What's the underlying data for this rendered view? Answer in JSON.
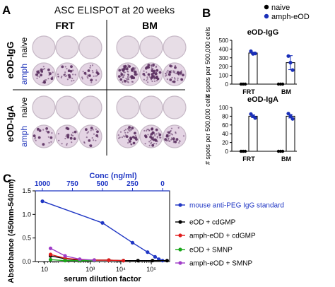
{
  "panel_labels": {
    "a": "A",
    "b": "B",
    "c": "C"
  },
  "panel_a": {
    "title": "ASC ELISPOT at 20 weeks",
    "columns": [
      "FRT",
      "BM"
    ],
    "row_groups": [
      {
        "label": "eOD-IgG",
        "rows": [
          "naive",
          "amph"
        ]
      },
      {
        "label": "eOD-IgA",
        "rows": [
          "naive",
          "amph"
        ]
      }
    ],
    "colors": {
      "naive_label": "#000000",
      "amph_label": "#1a2fb8",
      "well_bg": "#e7dde6",
      "well_rim": "#c6b8c6",
      "spot": "#5a2f5f"
    },
    "spot_density": {
      "igg_naive_frt": [
        0,
        0,
        0
      ],
      "igg_amph_frt": [
        30,
        28,
        26
      ],
      "igg_naive_bm": [
        0,
        0,
        0
      ],
      "igg_amph_bm": [
        70,
        60,
        45
      ],
      "iga_naive_frt": [
        0,
        0,
        0
      ],
      "iga_amph_frt": [
        18,
        22,
        20
      ],
      "iga_naive_bm": [
        0,
        0,
        0
      ],
      "iga_amph_bm": [
        40,
        45,
        35
      ]
    }
  },
  "panel_b": {
    "legend": [
      {
        "name": "naive",
        "color": "#000000"
      },
      {
        "name": "amph-eOD",
        "color": "#1a2fb8"
      }
    ],
    "ylabel": "# spots per 500,000 cells",
    "charts": [
      {
        "title": "eOD-IgG",
        "categories": [
          "FRT",
          "BM"
        ],
        "naive_values": [
          0,
          0
        ],
        "amph_values": [
          355,
          245
        ],
        "amph_points": [
          [
            375,
            345,
            350
          ],
          [
            320,
            245,
            160
          ]
        ],
        "amph_err": [
          10,
          80
        ],
        "ylim": [
          0,
          500
        ],
        "yticks": [
          "0",
          "100",
          "200",
          "300",
          "400",
          "500"
        ]
      },
      {
        "title": "eOD-IgA",
        "categories": [
          "FRT",
          "BM"
        ],
        "naive_values": [
          0,
          0
        ],
        "amph_values": [
          80,
          80
        ],
        "amph_points": [
          [
            85,
            80,
            76
          ],
          [
            86,
            80,
            74
          ]
        ],
        "amph_err": [
          3,
          4
        ],
        "ylim": [
          0,
          100
        ],
        "yticks": [
          "0",
          "20",
          "40",
          "60",
          "80",
          "100"
        ]
      }
    ]
  },
  "chart_data": {
    "type": "line",
    "top_axis_label": "Conc (ng/ml)",
    "top_ticks": [
      "1000",
      "750",
      "500",
      "250",
      "0"
    ],
    "ylabel": "Absorbance (450nm-540nm)",
    "xlabel": "serum dilution factor",
    "yticks": [
      "0.0",
      "0.5",
      "1.0",
      "1.5"
    ],
    "ylim": [
      0,
      1.5
    ],
    "x_log_ticks": [
      "10",
      "10³",
      "10⁴",
      "10⁵"
    ],
    "series": [
      {
        "name": "mouse anti-PEG IgG standard",
        "color": "#1f36c4",
        "points": [
          [
            1000,
            1.28
          ],
          [
            500,
            0.82
          ],
          [
            250,
            0.4
          ],
          [
            125,
            0.2
          ],
          [
            62.5,
            0.1
          ],
          [
            31.25,
            0.05
          ],
          [
            0,
            0.02
          ]
        ]
      },
      {
        "name": "eOD + cdGMP",
        "color": "#000000",
        "x": [
          50,
          150,
          450,
          1350,
          4050,
          12150,
          36450,
          109350,
          328050
        ],
        "y": [
          0.12,
          0.06,
          0.03,
          0.03,
          0.03,
          0.02,
          0.02,
          0.02,
          0.02
        ]
      },
      {
        "name": "amph-eOD + cdGMP",
        "color": "#e01b1b",
        "x": [
          50,
          150,
          450,
          1350,
          4050,
          12150
        ],
        "y": [
          0.15,
          0.07,
          0.04,
          0.03,
          0.03,
          0.02
        ]
      },
      {
        "name": "eOD + SMNP",
        "color": "#1aa61a",
        "x": [
          50,
          150,
          450,
          1350
        ],
        "y": [
          0.04,
          0.02,
          0.02,
          0.02
        ]
      },
      {
        "name": "amph-eOD + SMNP",
        "color": "#a03cc8",
        "x": [
          50,
          150,
          450,
          1350
        ],
        "y": [
          0.28,
          0.12,
          0.05,
          0.03
        ]
      }
    ]
  }
}
